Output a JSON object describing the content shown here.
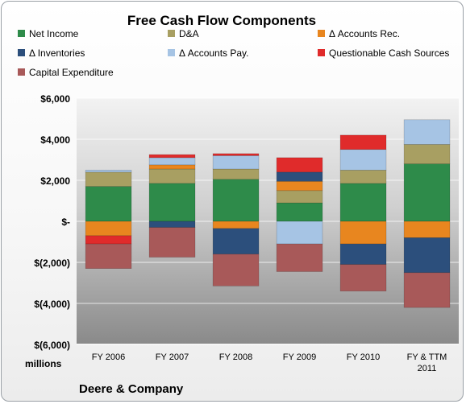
{
  "chart_data": {
    "type": "bar",
    "stacked": true,
    "diverging": true,
    "title": "Free Cash Flow Components",
    "subtitle": "Deere & Company",
    "ylabel": "millions",
    "xlabel": "",
    "ylim": [
      -6000,
      6000
    ],
    "ytick_step": 2000,
    "ytick_labels": [
      "$6,000",
      "$4,000",
      "$2,000",
      "$-",
      "$(2,000)",
      "$(4,000)",
      "$(6,000)"
    ],
    "categories": [
      "FY 2006",
      "FY 2007",
      "FY 2008",
      "FY 2009",
      "FY 2010",
      "FY & TTM 2011"
    ],
    "legend_position": "top",
    "grid": true,
    "series": [
      {
        "name": "Net Income",
        "color": "#2e8b4a",
        "values": [
          1700,
          1850,
          2050,
          900,
          1850,
          2800
        ]
      },
      {
        "name": "D&A",
        "color": "#a89f62",
        "values": [
          700,
          700,
          500,
          600,
          650,
          950
        ]
      },
      {
        "name": "Δ Accounts Rec.",
        "color": "#e8861f",
        "values": [
          -700,
          200,
          -350,
          450,
          -1100,
          -800
        ]
      },
      {
        "name": "Δ Inventories",
        "color": "#2c4f7c",
        "values": [
          0,
          -300,
          -1250,
          450,
          -1000,
          -1700
        ]
      },
      {
        "name": "Δ Accounts Pay.",
        "color": "#a6c4e4",
        "values": [
          100,
          350,
          650,
          -1100,
          1000,
          1200
        ]
      },
      {
        "name": "Questionable Cash Sources",
        "color": "#e02b2b",
        "values": [
          -400,
          150,
          100,
          700,
          700,
          0
        ]
      },
      {
        "name": "Capital Expenditure",
        "color": "#a85959",
        "values": [
          -1200,
          -1450,
          -1550,
          -1350,
          -1300,
          -1700
        ]
      }
    ]
  }
}
